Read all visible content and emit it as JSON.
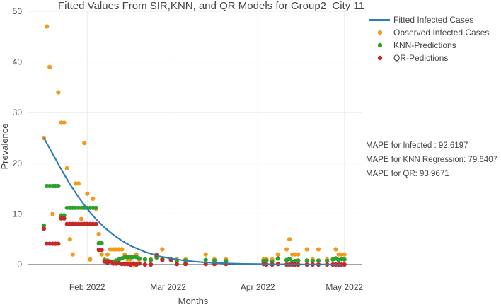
{
  "chart_data": {
    "type": "scatter",
    "title": "Fitted Values From SIR,KNN, and QR Models for Group2_City 11",
    "xlabel": "Months",
    "ylabel": "Prevalence",
    "ylim": [
      0,
      50
    ],
    "xlim": [
      0,
      107
    ],
    "y_ticks": [
      0,
      10,
      20,
      30,
      40,
      50
    ],
    "x_ticks": [
      {
        "day": 15,
        "label": "Feb 2022"
      },
      {
        "day": 43,
        "label": "Mar 2022"
      },
      {
        "day": 74,
        "label": "Apr 2022"
      },
      {
        "day": 104,
        "label": "May 2022"
      }
    ],
    "grid": true,
    "legend_position": "top-right",
    "colors": {
      "fitted": "#2f7fb5",
      "observed": "#f39a1c",
      "knn": "#2ca02c",
      "qr": "#c62828",
      "grid": "#ebebeb",
      "axis": "#444444"
    },
    "series": [
      {
        "name": "Fitted Infected Cases",
        "kind": "line",
        "x": [
          0,
          3,
          6,
          9,
          12,
          15,
          18,
          21,
          24,
          27,
          30,
          35,
          40,
          45,
          50,
          55,
          60,
          65,
          70,
          75,
          80,
          85,
          90,
          95,
          100,
          103
        ],
        "y": [
          25,
          21.9,
          18.8,
          15.9,
          13.3,
          11,
          9,
          7.3,
          5.9,
          4.7,
          3.7,
          2.5,
          1.6,
          1.1,
          0.7,
          0.45,
          0.3,
          0.2,
          0.13,
          0.08,
          0.05,
          0.03,
          0.02,
          0.01,
          0.01,
          0.01
        ]
      },
      {
        "name": "Observed  Infected Cases",
        "kind": "scatter",
        "x": [
          0,
          1,
          2,
          3,
          5,
          6,
          7,
          8,
          9,
          10,
          11,
          12,
          13,
          14,
          15,
          16,
          17,
          18,
          19,
          20,
          21,
          22,
          23,
          24,
          25,
          26,
          27,
          28,
          29,
          30,
          31,
          32,
          33,
          35,
          37,
          39,
          41,
          44,
          46,
          49,
          56,
          59,
          63,
          76,
          77,
          79,
          81,
          84,
          85,
          86,
          87,
          88,
          91,
          93,
          95,
          98,
          100,
          101,
          102,
          103,
          104
        ],
        "y": [
          25,
          47,
          39,
          10,
          34,
          28,
          28,
          19,
          5,
          2,
          16,
          16,
          9,
          24,
          14,
          1,
          13,
          11,
          6,
          2,
          1,
          2,
          3,
          3,
          3,
          3,
          3,
          2,
          1,
          1,
          0,
          2,
          1,
          1,
          1,
          2,
          3,
          1,
          1,
          1,
          2,
          1,
          1,
          1,
          1,
          1,
          2,
          3,
          5,
          2,
          2,
          2,
          3,
          1,
          3,
          1,
          1,
          3,
          2,
          2,
          2
        ]
      },
      {
        "name": "KNN-Predictions",
        "kind": "scatter",
        "x": [
          0,
          1,
          2,
          3,
          4,
          5,
          6,
          7,
          8,
          9,
          10,
          11,
          12,
          13,
          14,
          15,
          16,
          17,
          18,
          19,
          20,
          21,
          22,
          23,
          24,
          25,
          26,
          27,
          28,
          29,
          30,
          31,
          32,
          33,
          35,
          37,
          39,
          41,
          44,
          46,
          49,
          56,
          59,
          63,
          76,
          77,
          79,
          81,
          84,
          85,
          86,
          87,
          88,
          91,
          93,
          95,
          98,
          100,
          101,
          102,
          103,
          104
        ],
        "y": [
          7.7,
          15.5,
          15.5,
          15.5,
          15.5,
          15.5,
          9.7,
          9.7,
          11.2,
          11.2,
          11.2,
          11.2,
          11.2,
          11.2,
          11.2,
          11.2,
          11.2,
          11.2,
          11.2,
          4.2,
          4.2,
          0.8,
          0.8,
          0.6,
          0.6,
          0.8,
          1,
          1.2,
          1.5,
          1.5,
          1.5,
          1.5,
          1.5,
          1.2,
          1,
          0.9,
          1.4,
          1.1,
          0.9,
          0.8,
          0.8,
          0.9,
          0.8,
          0.7,
          0.7,
          0.8,
          0.6,
          1.2,
          0.9,
          1.1,
          0.6,
          0.7,
          0.8,
          0.8,
          0.7,
          0.8,
          0.7,
          1,
          1.2,
          0.9,
          1.1,
          1
        ]
      },
      {
        "name": "QR-Pedictions",
        "kind": "scatter",
        "x": [
          0,
          1,
          2,
          3,
          4,
          5,
          6,
          7,
          8,
          9,
          10,
          11,
          12,
          13,
          14,
          15,
          16,
          17,
          18,
          19,
          20,
          21,
          22,
          23,
          24,
          25,
          26,
          27,
          28,
          29,
          30,
          31,
          32,
          33,
          35,
          37,
          39,
          41,
          44,
          46,
          49,
          56,
          59,
          63,
          76,
          77,
          79,
          81,
          84,
          85,
          86,
          87,
          88,
          91,
          93,
          95,
          98,
          100,
          101,
          102,
          103,
          104
        ],
        "y": [
          7.1,
          4.1,
          4.1,
          4.1,
          4.1,
          4.1,
          9.1,
          9.1,
          8,
          8,
          8,
          8,
          8,
          8,
          8,
          8,
          8,
          8,
          8,
          2.9,
          2.9,
          0.6,
          0.4,
          0.6,
          0.2,
          0.2,
          0.3,
          0.1,
          0.1,
          0.1,
          0,
          0.2,
          0,
          0.2,
          0,
          0,
          1.8,
          0.9,
          1,
          0.1,
          0.1,
          0.1,
          0.1,
          0.1,
          0.1,
          0,
          0,
          0.1,
          0,
          0,
          0,
          0,
          0,
          0,
          0,
          0,
          0,
          0,
          0,
          0,
          0,
          0
        ]
      }
    ],
    "annotations": [
      "MAPE for Infected : 92.6197",
      "MAPE for KNN Regression: 79.6407",
      "MAPE for QR: 93.9671"
    ]
  }
}
